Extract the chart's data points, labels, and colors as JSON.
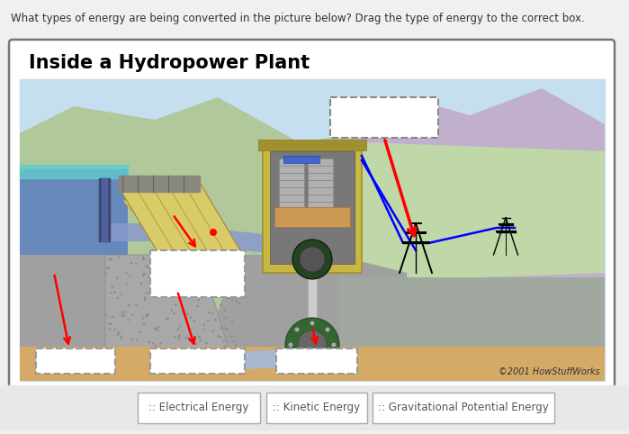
{
  "question_text": "What types of energy are being converted in the picture below? Drag the type of energy to the correct box.",
  "panel_title": "Inside a Hydropower Plant",
  "copyright_text": "©2001 HowStuffWorks",
  "bg_color": "#f0f0f0",
  "panel_bg": "#ffffff",
  "panel_border_color": "#777777",
  "sky_color": "#daeaf5",
  "sky_top_color": "#c5dff0",
  "mountain_left_color": "#b0c89a",
  "mountain_right_color": "#c0b0cc",
  "green_field_color": "#b8d4a0",
  "water_reservoir_color": "#7ab0d8",
  "water_tailrace_color": "#6aabcf",
  "water_flow_color": "#9bb8d8",
  "dam_body_color": "#aaaaaa",
  "dam_speckle_color": "#888888",
  "penstock_face_color": "#d4c880",
  "powerhouse_body_color": "#d0bf60",
  "powerhouse_inside_color": "#808080",
  "generator_color": "#a0a0a0",
  "ground_color": "#ccaa66",
  "sand_color": "#d4b870",
  "button_bar_color": "#e8e8e8",
  "button_border_color": "#aaaaaa",
  "button_text_color": "#555555"
}
